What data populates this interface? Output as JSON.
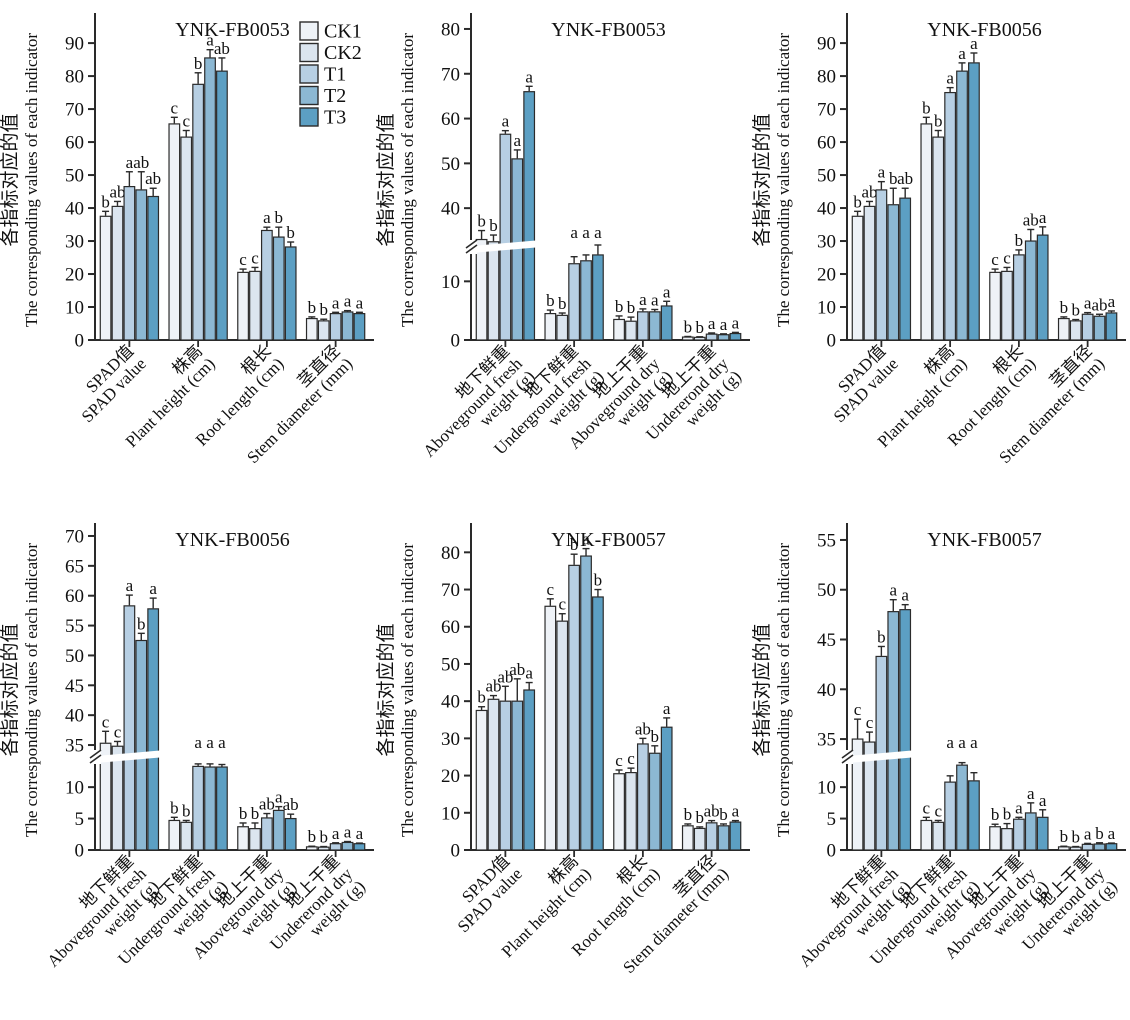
{
  "chart_data": {
    "type": "bar",
    "layout": "2x3 panel grid, grouped bars with error bars and significance letters",
    "series_names": [
      "CK1",
      "CK2",
      "T1",
      "T2",
      "T3"
    ],
    "series_colors": [
      "#eef2f7",
      "#dbe5ef",
      "#b7cfe3",
      "#8cb8d3",
      "#5c9fc3"
    ],
    "bar_outline": "#2b2b2b",
    "axis_color": "#2a2a2a",
    "y_axis_title_zh": "各指标对应的值",
    "y_axis_title_en": "The corresponding values of each indicator",
    "charts": [
      {
        "id": "YNK-FB0053-indicators",
        "title": "YNK-FB0053",
        "legend": true,
        "ymax": 97,
        "yticks": [
          0,
          10,
          20,
          30,
          40,
          50,
          60,
          70,
          80,
          90
        ],
        "groups": [
          {
            "label_lines": [
              "SPAD值",
              "SPAD value"
            ],
            "values": [
              37.5,
              40.5,
              46.5,
              45.5,
              43.5
            ],
            "errors": [
              1.5,
              1.5,
              4.5,
              5.5,
              2.5
            ],
            "letters": [
              "b",
              "ab",
              "a",
              "ab",
              "ab"
            ]
          },
          {
            "label_lines": [
              "株高",
              "Plant height (cm)"
            ],
            "values": [
              65.5,
              61.5,
              77.5,
              85.5,
              81.5
            ],
            "errors": [
              2,
              2,
              3.5,
              2.5,
              4
            ],
            "letters": [
              "c",
              "c",
              "b",
              "a",
              "ab"
            ]
          },
          {
            "label_lines": [
              "根长",
              "Root length (cm)"
            ],
            "values": [
              20.5,
              20.8,
              33.2,
              31.2,
              28.2
            ],
            "errors": [
              1,
              1.2,
              1,
              3,
              1.5
            ],
            "letters": [
              "c",
              "c",
              "a",
              "b",
              "b"
            ]
          },
          {
            "label_lines": [
              "茎直径",
              "Stem diameter (mm)"
            ],
            "values": [
              6.5,
              5.8,
              8,
              8.5,
              8
            ],
            "errors": [
              0.5,
              0.5,
              0.4,
              0.4,
              0.4
            ],
            "letters": [
              "b",
              "b",
              "a",
              "a",
              "a"
            ]
          }
        ]
      },
      {
        "id": "YNK-FB0053-weights",
        "title": "YNK-FB0053",
        "legend": false,
        "axis_break": {
          "lower_max": 15,
          "lower_ticks": [
            0,
            10
          ],
          "upper_min": 32,
          "upper_max": 82,
          "upper_ticks": [
            40,
            50,
            60,
            70,
            80
          ]
        },
        "groups": [
          {
            "label_lines": [
              "地下鲜重",
              "Aboveground fresh",
              "weight (g)"
            ],
            "values": [
              33,
              32.5,
              56.5,
              51,
              66
            ],
            "errors": [
              2,
              1.5,
              0.8,
              2,
              1.2
            ],
            "letters": [
              "b",
              "b",
              "a",
              "a",
              "a"
            ]
          },
          {
            "label_lines": [
              "地下鲜重",
              "Underground fresh",
              "weight (g)"
            ],
            "values": [
              4.5,
              4.2,
              13,
              13.5,
              14.5
            ],
            "errors": [
              0.6,
              0.4,
              1.2,
              1,
              1.8
            ],
            "letters": [
              "b",
              "b",
              "a",
              "a",
              "a"
            ]
          },
          {
            "label_lines": [
              "地上干重",
              "Aboveground dry",
              "weight (g)"
            ],
            "values": [
              3.5,
              3.2,
              4.8,
              4.8,
              5.8
            ],
            "errors": [
              0.6,
              0.7,
              0.5,
              0.4,
              0.8
            ],
            "letters": [
              "b",
              "b",
              "a",
              "a",
              "a"
            ]
          },
          {
            "label_lines": [
              "地上干重",
              "Undererond dry",
              "weight (g)"
            ],
            "values": [
              0.5,
              0.45,
              1,
              0.9,
              1.1
            ],
            "errors": [
              0.1,
              0.1,
              0.2,
              0.15,
              0.2
            ],
            "letters": [
              "b",
              "b",
              "a",
              "a",
              "a"
            ]
          }
        ]
      },
      {
        "id": "YNK-FB0056-indicators",
        "title": "YNK-FB0056",
        "legend": false,
        "ymax": 97,
        "yticks": [
          0,
          10,
          20,
          30,
          40,
          50,
          60,
          70,
          80,
          90
        ],
        "groups": [
          {
            "label_lines": [
              "SPAD值",
              "SPAD value"
            ],
            "values": [
              37.5,
              40.5,
              45.5,
              41,
              43
            ],
            "errors": [
              1.5,
              1.5,
              2.5,
              5,
              3
            ],
            "letters": [
              "b",
              "ab",
              "a",
              "b",
              "ab"
            ]
          },
          {
            "label_lines": [
              "株高",
              "Plant height (cm)"
            ],
            "values": [
              65.5,
              61.5,
              75,
              81.5,
              84
            ],
            "errors": [
              2,
              2,
              1.5,
              2.5,
              3
            ],
            "letters": [
              "b",
              "b",
              "a",
              "a",
              "a"
            ]
          },
          {
            "label_lines": [
              "根长",
              "Root length (cm)"
            ],
            "values": [
              20.5,
              20.8,
              25.8,
              30,
              31.8
            ],
            "errors": [
              1,
              1.2,
              1.5,
              3.5,
              2.5
            ],
            "letters": [
              "c",
              "c",
              "b",
              "ab",
              "a"
            ]
          },
          {
            "label_lines": [
              "茎直径",
              "Stem diameter (mm)"
            ],
            "values": [
              6.5,
              5.8,
              7.8,
              7.2,
              8.2
            ],
            "errors": [
              0.5,
              0.4,
              0.5,
              0.6,
              0.6
            ],
            "letters": [
              "b",
              "b",
              "a",
              "ab",
              "a"
            ]
          }
        ]
      },
      {
        "id": "YNK-FB0056-weights",
        "title": "YNK-FB0056",
        "legend": false,
        "axis_break": {
          "lower_max": 14,
          "lower_ticks": [
            0,
            5,
            10
          ],
          "upper_min": 33.5,
          "upper_max": 71,
          "upper_ticks": [
            35,
            40,
            45,
            50,
            55,
            60,
            65,
            70
          ]
        },
        "groups": [
          {
            "label_lines": [
              "地下鲜重",
              "Aboveground fresh",
              "weight (g)"
            ],
            "values": [
              35.3,
              34.8,
              58.3,
              52.5,
              57.8
            ],
            "errors": [
              2,
              0.8,
              1.8,
              1.2,
              1.8
            ],
            "letters": [
              "c",
              "c",
              "a",
              "b",
              "a"
            ]
          },
          {
            "label_lines": [
              "地下鲜重",
              "Underground fresh",
              "weight (g)"
            ],
            "values": [
              4.7,
              4.4,
              13.3,
              13.2,
              13.2
            ],
            "errors": [
              0.5,
              0.3,
              0.4,
              0.5,
              0.4
            ],
            "letters": [
              "b",
              "b",
              "a",
              "a",
              "a"
            ]
          },
          {
            "label_lines": [
              "地上干重",
              "Aboveground dry",
              "weight (g)"
            ],
            "values": [
              3.7,
              3.4,
              5.1,
              6.3,
              5
            ],
            "errors": [
              0.6,
              0.9,
              0.7,
              0.6,
              0.7
            ],
            "letters": [
              "b",
              "b",
              "ab",
              "a",
              "ab"
            ]
          },
          {
            "label_lines": [
              "地上干重",
              "Undererond dry",
              "weight (g)"
            ],
            "values": [
              0.5,
              0.45,
              1,
              1.2,
              1
            ],
            "errors": [
              0.1,
              0.1,
              0.15,
              0.15,
              0.1
            ],
            "letters": [
              "b",
              "b",
              "a",
              "a",
              "a"
            ]
          }
        ]
      },
      {
        "id": "YNK-FB0057-indicators",
        "title": "YNK-FB0057",
        "legend": false,
        "ymax": 86,
        "yticks": [
          0,
          10,
          20,
          30,
          40,
          50,
          60,
          70,
          80
        ],
        "groups": [
          {
            "label_lines": [
              "SPAD值",
              "SPAD value"
            ],
            "values": [
              37.5,
              40.5,
              40,
              40,
              43
            ],
            "errors": [
              1,
              1,
              4,
              6,
              2
            ],
            "letters": [
              "b",
              "ab",
              "ab",
              "ab",
              "a"
            ]
          },
          {
            "label_lines": [
              "株高",
              "Plant height (cm)"
            ],
            "values": [
              65.5,
              61.5,
              76.5,
              79,
              68
            ],
            "errors": [
              2,
              2,
              3,
              2,
              2
            ],
            "letters": [
              "c",
              "c",
              "b",
              "a",
              "b"
            ]
          },
          {
            "label_lines": [
              "根长",
              "Root length (cm)"
            ],
            "values": [
              20.5,
              20.8,
              28.5,
              26,
              33
            ],
            "errors": [
              1,
              1.2,
              1.5,
              2,
              2.5
            ],
            "letters": [
              "c",
              "c",
              "ab",
              "b",
              "a"
            ]
          },
          {
            "label_lines": [
              "茎直径",
              "Stem diameter (mm)"
            ],
            "values": [
              6.5,
              5.8,
              7.3,
              6.5,
              7.5
            ],
            "errors": [
              0.5,
              0.4,
              0.6,
              0.5,
              0.4
            ],
            "letters": [
              "b",
              "b",
              "ab",
              "b",
              "a"
            ]
          }
        ]
      },
      {
        "id": "YNK-FB0057-weights",
        "title": "YNK-FB0057",
        "legend": false,
        "axis_break": {
          "lower_max": 14,
          "lower_ticks": [
            0,
            5,
            10
          ],
          "upper_min": 33.5,
          "upper_max": 56,
          "upper_ticks": [
            35,
            40,
            45,
            50,
            55
          ]
        },
        "groups": [
          {
            "label_lines": [
              "地下鲜重",
              "Aboveground fresh",
              "weight (g)"
            ],
            "values": [
              35,
              34.7,
              43.3,
              47.8,
              48
            ],
            "errors": [
              2,
              1,
              1,
              1.2,
              0.5
            ],
            "letters": [
              "c",
              "c",
              "b",
              "a",
              "a"
            ]
          },
          {
            "label_lines": [
              "地下鲜重",
              "Underground fresh",
              "weight (g)"
            ],
            "values": [
              4.7,
              4.4,
              10.8,
              13.5,
              11
            ],
            "errors": [
              0.5,
              0.3,
              1,
              0.4,
              1.3
            ],
            "letters": [
              "c",
              "c",
              "a",
              "a",
              "a"
            ]
          },
          {
            "label_lines": [
              "地上干重",
              "Aboveground dry",
              "weight (g)"
            ],
            "values": [
              3.7,
              3.4,
              4.9,
              5.9,
              5.2
            ],
            "errors": [
              0.4,
              0.8,
              0.3,
              1.6,
              1.2
            ],
            "letters": [
              "b",
              "b",
              "a",
              "a",
              "a"
            ]
          },
          {
            "label_lines": [
              "地上干重",
              "Undererond dry",
              "weight (g)"
            ],
            "values": [
              0.5,
              0.45,
              0.9,
              0.95,
              1
            ],
            "errors": [
              0.1,
              0.1,
              0.15,
              0.2,
              0.1
            ],
            "letters": [
              "b",
              "b",
              "a",
              "b",
              "a"
            ]
          }
        ]
      }
    ]
  }
}
